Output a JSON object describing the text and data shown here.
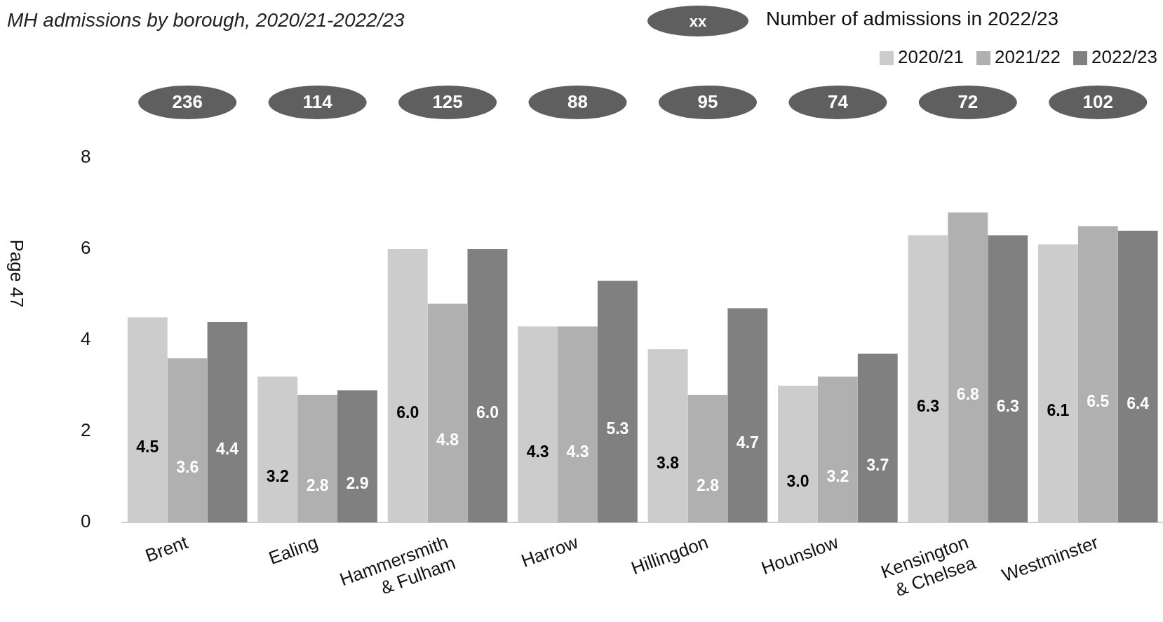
{
  "chart_data": {
    "type": "bar",
    "title": "MH admissions by borough, 2020/21-2022/23",
    "categories": [
      "Brent",
      "Ealing",
      "Hammersmith & Fulham",
      "Harrow",
      "Hillingdon",
      "Hounslow",
      "Kensington & Chelsea",
      "Westminster"
    ],
    "series": [
      {
        "name": "2020/21",
        "color": "#cccccc",
        "values": [
          4.5,
          3.2,
          6.0,
          4.3,
          3.8,
          3.0,
          6.3,
          6.1
        ],
        "value_labels": [
          "4.5",
          "3.2",
          "6.0",
          "4.3",
          "3.8",
          "3.0",
          "6.3",
          "6.1"
        ]
      },
      {
        "name": "2021/22",
        "color": "#b0b0b0",
        "values": [
          3.6,
          2.8,
          4.8,
          4.3,
          2.8,
          3.2,
          6.8,
          6.5
        ],
        "value_labels": [
          "3.6",
          "2.8",
          "4.8",
          "4.3",
          "2.8",
          "3.2",
          "6.8",
          "6.5"
        ]
      },
      {
        "name": "2022/23",
        "color": "#808080",
        "values": [
          4.4,
          2.9,
          6.0,
          5.3,
          4.7,
          3.7,
          6.3,
          6.4
        ],
        "value_labels": [
          "4.4",
          "2.9",
          "6.0",
          "5.3",
          "4.7",
          "3.7",
          "6.3",
          "6.4"
        ]
      }
    ],
    "ylim": [
      0,
      8
    ],
    "yticks": [
      0,
      2,
      4,
      6,
      8
    ],
    "grid": false,
    "legend": "top right",
    "annotations": [
      "xx",
      "Number of admissions in 2022/23",
      "Page 47",
      "236",
      "114",
      "125",
      "88",
      "95",
      "74",
      "72",
      "102"
    ]
  }
}
